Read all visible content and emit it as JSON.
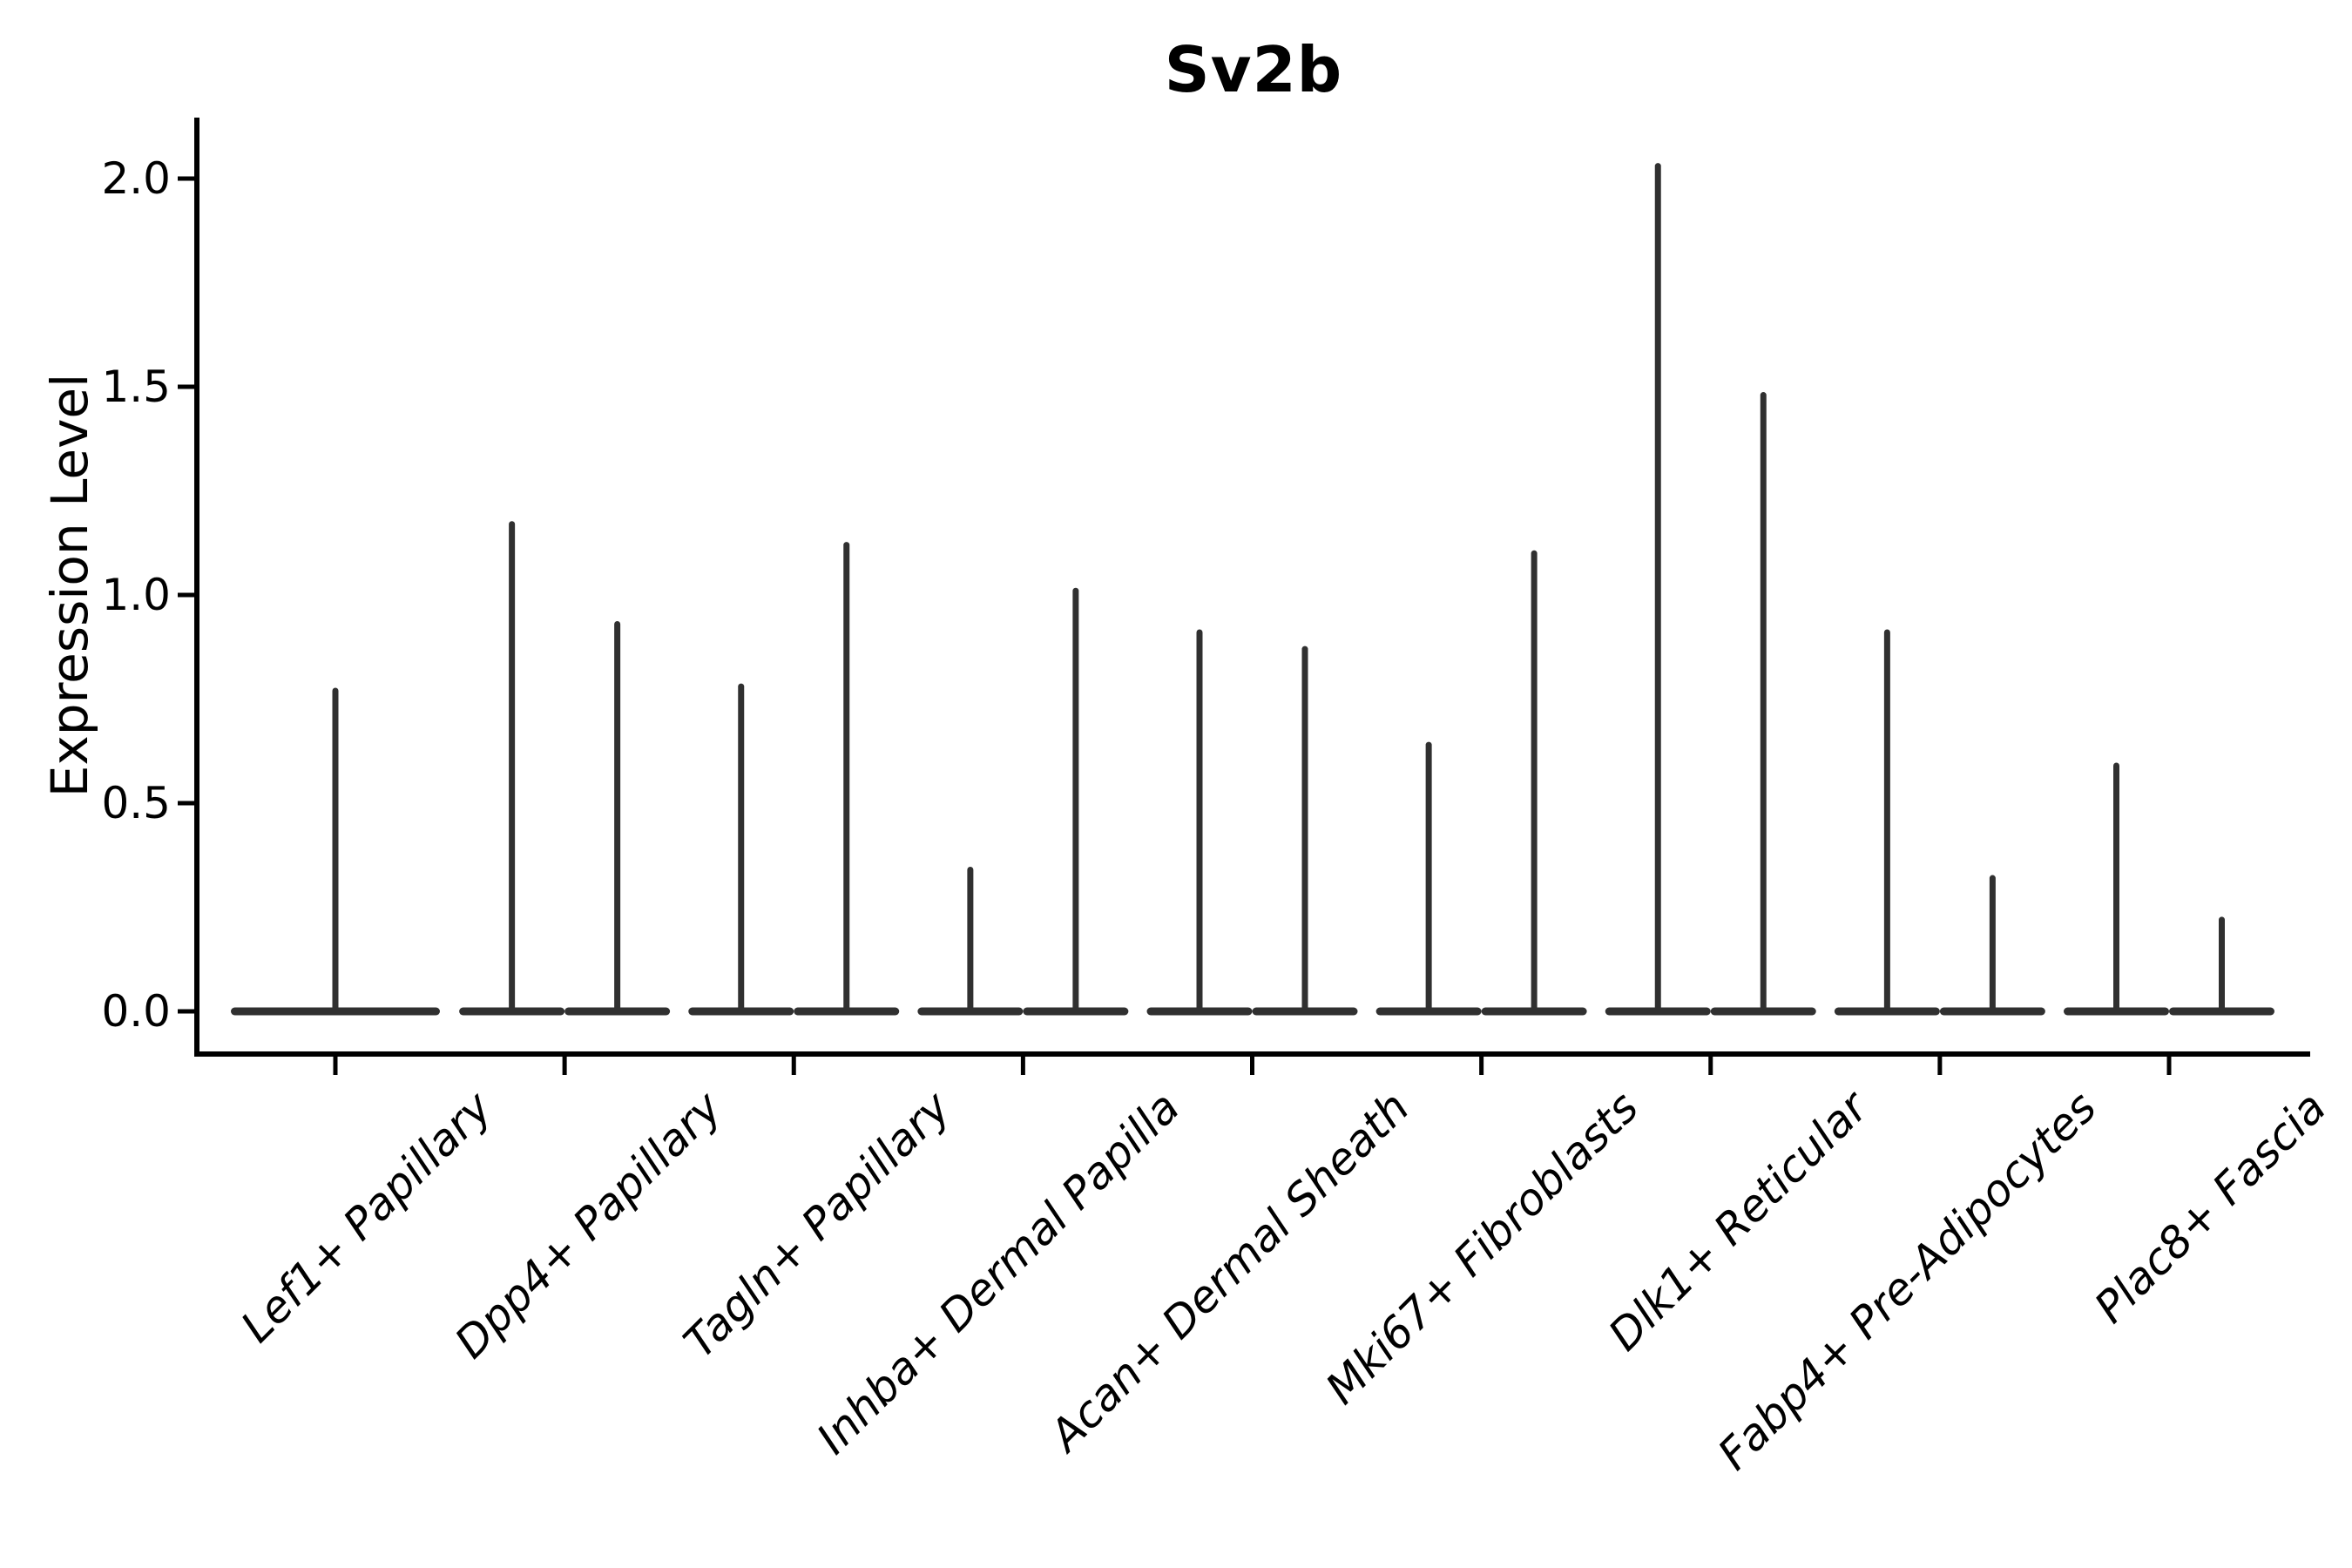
{
  "chart_data": {
    "type": "violin",
    "title": "Sv2b",
    "ylabel": "Expression Level",
    "xlabel": "",
    "ylim": [
      -0.1,
      2.15
    ],
    "yticks": [
      0.0,
      0.5,
      1.0,
      1.5,
      2.0
    ],
    "ytick_labels": [
      "0.0",
      "0.5",
      "1.0",
      "1.5",
      "2.0"
    ],
    "grid": false,
    "legend_position": "none",
    "violin_color": "#303030",
    "axis_color": "#000000",
    "violins": [
      {
        "category": "Lef1+ Papillary",
        "peaks": [
          0.77
        ]
      },
      {
        "category": "Dpp4+ Papillary",
        "peaks": [
          1.17,
          0.93
        ]
      },
      {
        "category": "Tagln+ Papillary",
        "peaks": [
          0.78,
          1.12
        ]
      },
      {
        "category": "Inhba+ Dermal Papilla",
        "peaks": [
          0.34,
          1.01
        ]
      },
      {
        "category": "Acan+ Dermal Sheath",
        "peaks": [
          0.91,
          0.87
        ]
      },
      {
        "category": "Mki67+ Fibroblasts",
        "peaks": [
          0.64,
          1.1
        ]
      },
      {
        "category": "Dlk1+ Reticular",
        "peaks": [
          2.03,
          1.48
        ]
      },
      {
        "category": "Fabp4+ Pre-Adipocytes",
        "peaks": [
          0.91,
          0.32
        ]
      },
      {
        "category": "Plac8+ Fascia",
        "peaks": [
          0.59,
          0.22
        ]
      }
    ]
  }
}
